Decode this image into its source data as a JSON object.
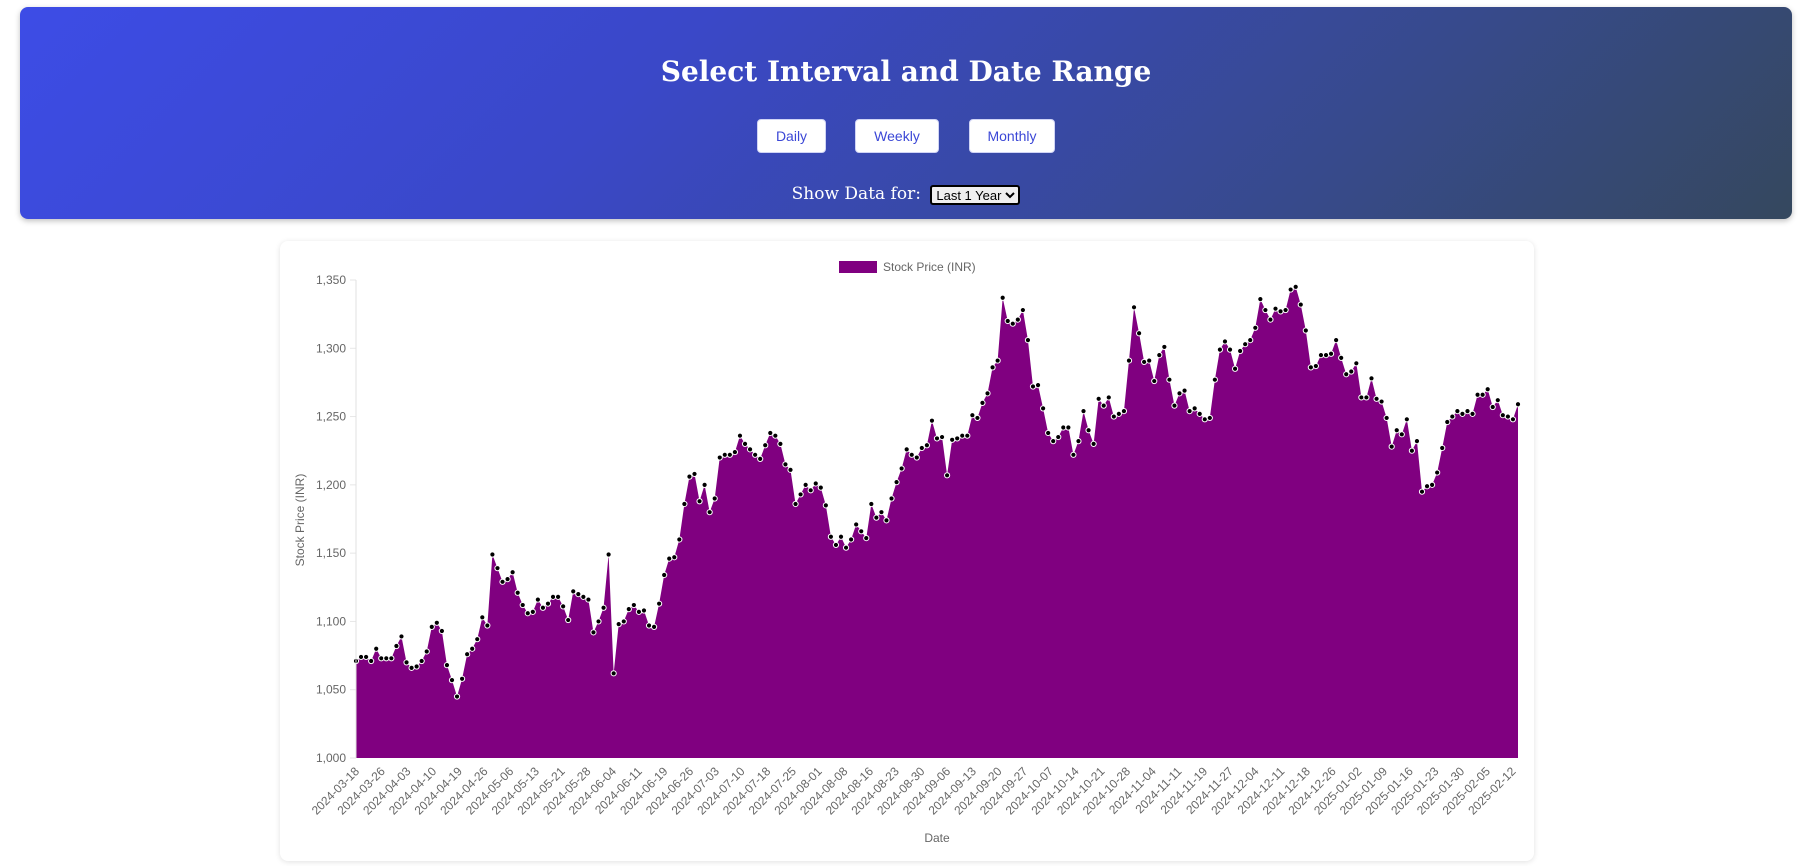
{
  "header": {
    "title": "Select Interval and Date Range",
    "buttons": [
      "Daily",
      "Weekly",
      "Monthly"
    ],
    "range_label": "Show Data for:",
    "range_selected": "Last 1 Year"
  },
  "colors": {
    "area": "#800080",
    "point": "#000000"
  },
  "chart_data": {
    "type": "area",
    "legend": "Stock Price (INR)",
    "xlabel": "Date",
    "ylabel": "Stock Price (INR)",
    "ylim": [
      1000,
      1350
    ],
    "yticks": [
      "1,000",
      "1,050",
      "1,100",
      "1,150",
      "1,200",
      "1,250",
      "1,300",
      "1,350"
    ],
    "ytick_values": [
      1000,
      1050,
      1100,
      1150,
      1200,
      1250,
      1300,
      1350
    ],
    "xtick_labels": [
      "2024-03-18",
      "2024-03-26",
      "2024-04-03",
      "2024-04-10",
      "2024-04-19",
      "2024-04-26",
      "2024-05-06",
      "2024-05-13",
      "2024-05-21",
      "2024-05-28",
      "2024-06-04",
      "2024-06-11",
      "2024-06-19",
      "2024-06-26",
      "2024-07-03",
      "2024-07-10",
      "2024-07-18",
      "2024-07-25",
      "2024-08-01",
      "2024-08-08",
      "2024-08-16",
      "2024-08-23",
      "2024-08-30",
      "2024-09-06",
      "2024-09-13",
      "2024-09-20",
      "2024-09-27",
      "2024-10-07",
      "2024-10-14",
      "2024-10-21",
      "2024-10-28",
      "2024-11-04",
      "2024-11-11",
      "2024-11-19",
      "2024-11-27",
      "2024-12-04",
      "2024-12-11",
      "2024-12-18",
      "2024-12-26",
      "2025-01-02",
      "2025-01-09",
      "2025-01-16",
      "2025-01-23",
      "2025-01-30",
      "2025-02-05",
      "2025-02-12"
    ],
    "values": [
      1071,
      1074,
      1074,
      1071,
      1080,
      1073,
      1073,
      1073,
      1082,
      1089,
      1070,
      1066,
      1067,
      1071,
      1078,
      1096,
      1099,
      1093,
      1068,
      1057,
      1045,
      1058,
      1076,
      1080,
      1087,
      1103,
      1097,
      1149,
      1139,
      1129,
      1131,
      1136,
      1121,
      1112,
      1106,
      1107,
      1116,
      1110,
      1113,
      1118,
      1118,
      1111,
      1101,
      1122,
      1120,
      1118,
      1116,
      1092,
      1100,
      1110,
      1149,
      1062,
      1098,
      1100,
      1109,
      1112,
      1107,
      1108,
      1097,
      1096,
      1113,
      1134,
      1146,
      1147,
      1160,
      1186,
      1206,
      1208,
      1188,
      1200,
      1180,
      1190,
      1220,
      1222,
      1222,
      1224,
      1236,
      1230,
      1226,
      1222,
      1219,
      1229,
      1238,
      1236,
      1230,
      1215,
      1211,
      1186,
      1193,
      1200,
      1196,
      1201,
      1198,
      1185,
      1162,
      1156,
      1162,
      1154,
      1160,
      1171,
      1166,
      1161,
      1186,
      1176,
      1180,
      1174,
      1190,
      1202,
      1212,
      1226,
      1222,
      1220,
      1227,
      1229,
      1247,
      1234,
      1235,
      1207,
      1233,
      1234,
      1236,
      1236,
      1251,
      1249,
      1260,
      1267,
      1286,
      1291,
      1337,
      1320,
      1318,
      1321,
      1328,
      1306,
      1272,
      1273,
      1256,
      1238,
      1232,
      1235,
      1242,
      1242,
      1222,
      1232,
      1254,
      1240,
      1230,
      1263,
      1258,
      1264,
      1250,
      1252,
      1254,
      1291,
      1330,
      1311,
      1290,
      1291,
      1276,
      1295,
      1301,
      1277,
      1258,
      1267,
      1269,
      1254,
      1256,
      1252,
      1248,
      1249,
      1277,
      1299,
      1305,
      1299,
      1285,
      1298,
      1303,
      1306,
      1315,
      1336,
      1328,
      1321,
      1329,
      1327,
      1328,
      1343,
      1345,
      1332,
      1313,
      1286,
      1287,
      1295,
      1295,
      1296,
      1306,
      1293,
      1281,
      1283,
      1289,
      1264,
      1264,
      1278,
      1263,
      1261,
      1249,
      1228,
      1240,
      1237,
      1248,
      1225,
      1232,
      1195,
      1199,
      1200,
      1209,
      1227,
      1246,
      1250,
      1254,
      1252,
      1254,
      1252,
      1266,
      1266,
      1270,
      1257,
      1262,
      1251,
      1250,
      1248,
      1259
    ]
  }
}
